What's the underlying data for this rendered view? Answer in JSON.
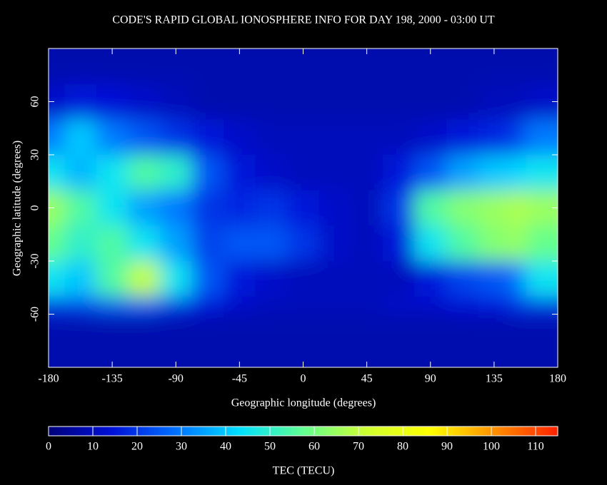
{
  "chart_data": {
    "type": "heatmap",
    "title": "CODE'S RAPID GLOBAL IONOSPHERE INFO FOR DAY 198, 2000 - 03:00 UT",
    "x_label": "Geographic longitude (degrees)",
    "y_label": "Geographic latitude (degrees)",
    "colorbar_label": "TEC (TECU)",
    "xlim": [
      -180,
      180
    ],
    "xticks": [
      -180,
      -135,
      -90,
      -45,
      0,
      45,
      90,
      135,
      180
    ],
    "ylim": [
      -90,
      90
    ],
    "yticks": [
      -60,
      -30,
      0,
      30,
      60
    ],
    "clim": [
      0,
      115
    ],
    "cticks": [
      0,
      10,
      20,
      30,
      40,
      50,
      60,
      70,
      80,
      90,
      100,
      110
    ],
    "colormap": [
      "#00007a",
      "#0010d8",
      "#0070ff",
      "#00e0ff",
      "#60ff90",
      "#d0ff30",
      "#ffff00",
      "#ff9000",
      "#ff2000"
    ],
    "x": [
      -180,
      -157.5,
      -135,
      -112.5,
      -90,
      -67.5,
      -45,
      -22.5,
      0,
      22.5,
      45,
      67.5,
      90,
      112.5,
      135,
      157.5,
      180
    ],
    "y": [
      80,
      60,
      40,
      20,
      0,
      -20,
      -40,
      -60,
      -80
    ],
    "z": [
      [
        8,
        8,
        8,
        8,
        8,
        8,
        8,
        8,
        8,
        8,
        8,
        8,
        8,
        8,
        8,
        8,
        8
      ],
      [
        12,
        15,
        14,
        12,
        10,
        8,
        8,
        8,
        8,
        8,
        8,
        8,
        8,
        8,
        10,
        10,
        12
      ],
      [
        30,
        40,
        30,
        25,
        20,
        15,
        12,
        10,
        10,
        10,
        10,
        10,
        12,
        15,
        18,
        22,
        30
      ],
      [
        45,
        38,
        45,
        55,
        50,
        25,
        15,
        12,
        10,
        10,
        10,
        15,
        25,
        35,
        40,
        42,
        45
      ],
      [
        65,
        55,
        45,
        35,
        30,
        20,
        18,
        20,
        15,
        12,
        10,
        20,
        55,
        62,
        65,
        68,
        65
      ],
      [
        58,
        50,
        55,
        45,
        35,
        22,
        25,
        25,
        20,
        12,
        10,
        15,
        45,
        55,
        62,
        65,
        58
      ],
      [
        45,
        40,
        55,
        70,
        45,
        25,
        15,
        12,
        10,
        10,
        10,
        10,
        15,
        22,
        25,
        30,
        45
      ],
      [
        20,
        22,
        25,
        25,
        20,
        15,
        12,
        10,
        10,
        10,
        10,
        12,
        12,
        14,
        15,
        20,
        20
      ],
      [
        8,
        8,
        8,
        8,
        8,
        8,
        8,
        8,
        8,
        8,
        8,
        8,
        8,
        8,
        8,
        8,
        8
      ]
    ]
  }
}
